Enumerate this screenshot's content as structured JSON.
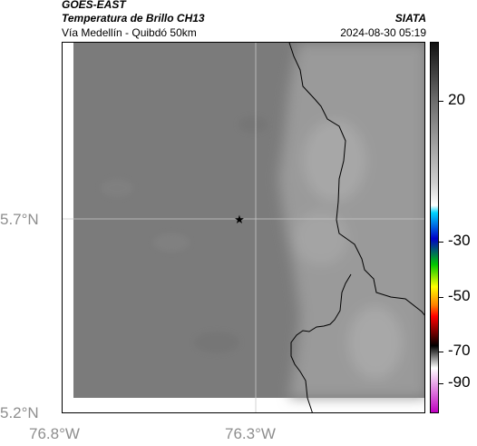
{
  "header": {
    "satellite": "GOES-EAST",
    "product": "Temperatura de Brillo CH13",
    "agency": "SIATA",
    "route": "Vía Medellín - Quibdó 50km",
    "datetime": "2024-08-30 05:19"
  },
  "map": {
    "lat_labels": [
      "5.7°N",
      "5.2°N"
    ],
    "lon_labels": [
      "76.8°W",
      "76.3°W"
    ],
    "marker_icon": "star-icon",
    "colors": {
      "dark_region": "#7b7b7b",
      "light_region": "#9a9a9a",
      "frame": "#000000",
      "gridline": "#c8c8c8"
    }
  },
  "colorbar": {
    "labels": [
      "20",
      "-30",
      "-50",
      "-70",
      "-90"
    ],
    "colors": [
      "#111111",
      "#6e6e6e",
      "#cfcfcf",
      "#ffffff",
      "#00d5ff",
      "#0000c8",
      "#00c800",
      "#ffff00",
      "#ff8000",
      "#ff0000",
      "#000000",
      "#ffffff",
      "#c000c0"
    ]
  }
}
